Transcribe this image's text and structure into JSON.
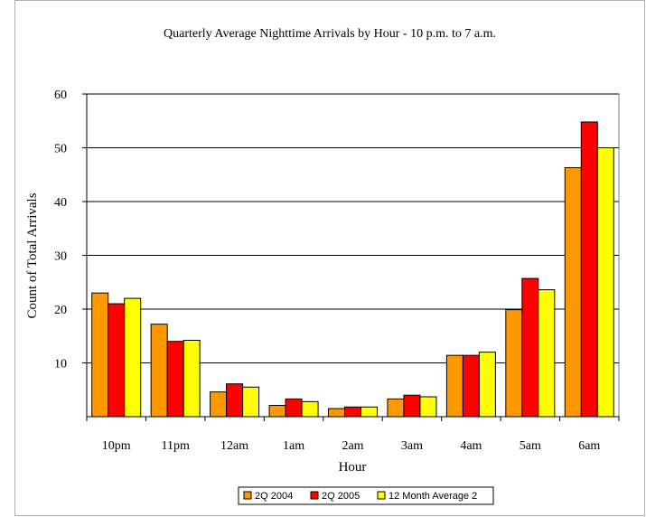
{
  "chart_data": {
    "type": "bar",
    "title": "Quarterly Average Nighttime Arrivals by Hour - 10 p.m. to 7 a.m.",
    "xlabel": "Hour",
    "ylabel": "Count of Total Arrivals",
    "categories": [
      "10pm",
      "11pm",
      "12am",
      "1am",
      "2am",
      "3am",
      "4am",
      "5am",
      "6am"
    ],
    "ylim": [
      0,
      60
    ],
    "yticks": [
      10,
      20,
      30,
      40,
      50,
      60
    ],
    "grid": "horizontal",
    "legend_position": "bottom",
    "series": [
      {
        "name": "2Q 2004",
        "color": "#ff9900",
        "values": [
          23,
          17.2,
          4.6,
          2.1,
          1.5,
          3.3,
          11.4,
          19.9,
          46.3
        ]
      },
      {
        "name": "2Q 2005",
        "color": "#ff0000",
        "values": [
          21,
          14,
          6.1,
          3.3,
          1.8,
          4.0,
          11.4,
          25.7,
          54.8
        ]
      },
      {
        "name": "12 Month Average 2",
        "color": "#ffff00",
        "values": [
          22,
          14.2,
          5.5,
          2.8,
          1.8,
          3.7,
          12.0,
          23.6,
          50.0
        ]
      }
    ]
  }
}
